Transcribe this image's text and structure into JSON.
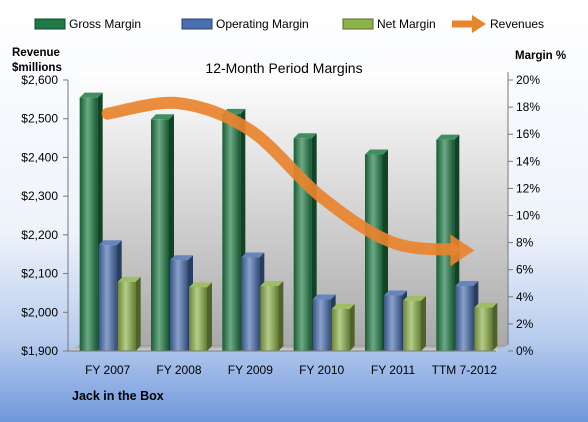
{
  "chart_data": {
    "type": "bar",
    "title": "12-Month Period Margins",
    "caption": "Jack in the Box",
    "categories": [
      "FY 2007",
      "FY 2008",
      "FY 2009",
      "FY 2010",
      "FY 2011",
      "TTM 7-2012"
    ],
    "left_axis": {
      "label_line1": "Revenue",
      "label_line2": "$millions",
      "min": 1900,
      "max": 2600,
      "step": 100,
      "ticks": [
        "$1,900",
        "$2,000",
        "$2,100",
        "$2,200",
        "$2,300",
        "$2,400",
        "$2,500",
        "$2,600"
      ]
    },
    "right_axis": {
      "label": "Margin %",
      "min": 0,
      "max": 20,
      "step": 2,
      "ticks": [
        "0%",
        "2%",
        "4%",
        "6%",
        "8%",
        "10%",
        "12%",
        "14%",
        "16%",
        "18%",
        "20%"
      ]
    },
    "series": [
      {
        "name": "Gross Margin",
        "axis": "right",
        "color": "#1e7b45",
        "values": [
          18.7,
          17.1,
          17.5,
          15.7,
          14.5,
          15.6
        ]
      },
      {
        "name": "Operating Margin",
        "axis": "right",
        "color": "#4a6fb0",
        "values": [
          7.8,
          6.7,
          6.9,
          3.8,
          4.1,
          4.8
        ]
      },
      {
        "name": "Net Margin",
        "axis": "right",
        "color": "#8db24a",
        "values": [
          5.1,
          4.7,
          4.8,
          3.1,
          3.7,
          3.2
        ]
      },
      {
        "name": "Revenues",
        "axis": "left",
        "color": "#e8832e",
        "type": "line",
        "values": [
          2513,
          2540,
          2470,
          2297,
          2180,
          2160
        ]
      }
    ],
    "legend_position": "top",
    "grid": false
  }
}
